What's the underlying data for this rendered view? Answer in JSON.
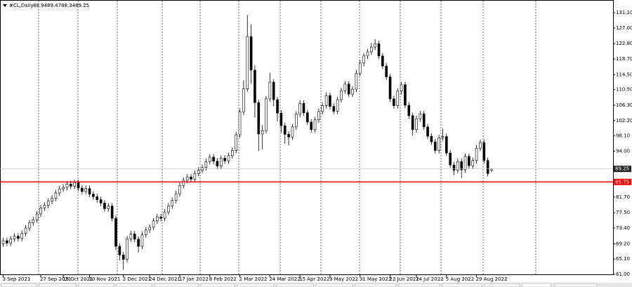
{
  "chart_data": {
    "type": "candlestick",
    "symbol": "#CL,Daily",
    "open": [
      69.2,
      70.0,
      69.4,
      70.5,
      71.2,
      70.6,
      72.0,
      73.4,
      74.8,
      75.6,
      77.2,
      78.8,
      79.5,
      80.6,
      81.4,
      82.8,
      83.9,
      84.3,
      85.2,
      84.6,
      85.6,
      84.1,
      83.2,
      84.0,
      82.5,
      81.8,
      81.0,
      80.1,
      78.6,
      79.3,
      76.0,
      68.5,
      66.2,
      65.0,
      70.5,
      71.8,
      70.4,
      68.5,
      71.6,
      72.9,
      73.6,
      75.3,
      76.4,
      76.0,
      77.7,
      79.3,
      80.8,
      82.6,
      84.8,
      86.2,
      87.1,
      86.5,
      88.0,
      88.9,
      89.6,
      91.2,
      92.4,
      91.3,
      90.0,
      92.1,
      91.4,
      92.8,
      94.2,
      98.4,
      104.5,
      110.7,
      124.7,
      115.7,
      107.0,
      98.6,
      99.5,
      108.0,
      112.5,
      107.8,
      104.2,
      100.8,
      98.5,
      97.8,
      100.5,
      103.9,
      106.8,
      104.3,
      101.8,
      99.8,
      102.4,
      104.6,
      106.2,
      108.9,
      106.0,
      104.7,
      107.8,
      110.2,
      112.0,
      109.3,
      110.6,
      114.9,
      117.6,
      119.5,
      120.6,
      121.9,
      122.8,
      119.5,
      116.8,
      113.9,
      108.0,
      106.2,
      110.1,
      111.8,
      106.3,
      103.5,
      99.8,
      102.7,
      104.0,
      100.5,
      98.0,
      96.5,
      94.2,
      97.6,
      97.9,
      93.5,
      90.3,
      88.9,
      91.2,
      89.0,
      92.6,
      90.1,
      91.5,
      94.8,
      96.3,
      91.5,
      88.94
    ],
    "high": [
      70.8,
      70.8,
      71.3,
      72.0,
      72.0,
      72.8,
      74.2,
      75.6,
      76.4,
      78.0,
      79.6,
      80.3,
      81.4,
      82.2,
      83.6,
      84.7,
      85.1,
      86.0,
      86.0,
      86.4,
      86.4,
      84.9,
      84.8,
      84.8,
      83.3,
      82.6,
      81.8,
      80.9,
      80.1,
      80.1,
      76.8,
      69.3,
      67.0,
      71.3,
      72.6,
      72.6,
      71.2,
      72.4,
      73.7,
      74.4,
      76.1,
      77.2,
      77.2,
      78.5,
      80.1,
      81.6,
      83.4,
      85.6,
      87.0,
      87.9,
      87.9,
      88.8,
      89.7,
      90.4,
      92.0,
      93.2,
      93.2,
      92.1,
      92.9,
      92.9,
      93.6,
      95.0,
      99.2,
      105.3,
      113.0,
      130.5,
      128.0,
      117.0,
      107.8,
      101.0,
      108.8,
      115.0,
      113.3,
      108.6,
      105.0,
      101.6,
      99.3,
      101.3,
      104.7,
      107.6,
      107.6,
      105.1,
      102.6,
      103.2,
      105.4,
      107.0,
      109.7,
      109.7,
      106.8,
      108.6,
      111.0,
      112.8,
      112.8,
      111.4,
      115.7,
      118.4,
      120.3,
      121.4,
      123.0,
      124.0,
      123.6,
      120.3,
      117.6,
      114.7,
      108.8,
      110.9,
      112.6,
      112.6,
      107.1,
      104.3,
      103.5,
      104.8,
      104.8,
      101.3,
      98.8,
      97.3,
      98.4,
      100.0,
      98.7,
      94.3,
      91.1,
      92.0,
      92.0,
      93.4,
      93.4,
      92.3,
      95.6,
      97.1,
      97.1,
      92.3,
      89.47
    ],
    "low": [
      68.4,
      68.6,
      68.6,
      69.7,
      69.8,
      69.8,
      71.2,
      72.6,
      74.0,
      74.8,
      76.4,
      78.0,
      78.7,
      79.8,
      80.6,
      82.0,
      83.1,
      83.5,
      83.8,
      83.8,
      83.3,
      82.4,
      82.4,
      81.7,
      81.0,
      80.2,
      79.3,
      77.8,
      77.8,
      75.2,
      67.5,
      64.8,
      62.2,
      64.2,
      69.7,
      69.6,
      66.8,
      67.7,
      70.8,
      72.1,
      72.8,
      74.5,
      75.2,
      75.2,
      76.9,
      78.5,
      80.0,
      81.8,
      84.0,
      85.4,
      85.7,
      85.7,
      87.2,
      88.1,
      88.8,
      90.4,
      90.5,
      89.2,
      89.2,
      90.6,
      90.6,
      92.0,
      93.4,
      97.6,
      103.7,
      109.9,
      112.0,
      103.0,
      94.0,
      94.5,
      98.7,
      107.2,
      106.0,
      102.0,
      99.0,
      96.0,
      95.5,
      97.0,
      99.7,
      103.1,
      103.5,
      101.0,
      99.0,
      99.0,
      101.6,
      103.8,
      105.4,
      105.2,
      103.9,
      103.9,
      107.0,
      109.4,
      108.5,
      108.5,
      109.8,
      114.1,
      116.8,
      118.7,
      119.8,
      121.1,
      118.7,
      116.0,
      113.1,
      107.2,
      105.4,
      105.4,
      109.3,
      105.5,
      102.7,
      98.2,
      99.0,
      101.9,
      99.7,
      97.2,
      95.7,
      93.4,
      93.4,
      96.8,
      92.7,
      89.5,
      87.6,
      88.1,
      86.8,
      88.2,
      89.3,
      89.3,
      90.7,
      94.0,
      90.7,
      87.2,
      88.34
    ],
    "close": [
      70.0,
      69.4,
      70.5,
      71.2,
      70.6,
      72.0,
      73.4,
      74.8,
      75.6,
      77.2,
      78.8,
      79.5,
      80.6,
      81.4,
      82.8,
      83.9,
      84.3,
      85.2,
      84.6,
      85.6,
      84.1,
      83.2,
      84.0,
      82.5,
      81.8,
      81.0,
      80.1,
      78.6,
      79.3,
      76.0,
      68.5,
      66.2,
      65.0,
      70.5,
      71.8,
      70.4,
      68.5,
      71.6,
      72.9,
      73.6,
      75.3,
      76.4,
      76.0,
      77.7,
      79.3,
      80.8,
      82.6,
      84.8,
      86.2,
      87.1,
      86.5,
      88.0,
      88.9,
      89.6,
      91.2,
      92.4,
      91.3,
      90.0,
      92.1,
      91.4,
      92.8,
      94.2,
      98.4,
      104.5,
      110.7,
      124.7,
      115.7,
      107.0,
      98.6,
      99.5,
      108.0,
      112.5,
      107.8,
      104.2,
      100.8,
      98.5,
      97.8,
      100.5,
      103.9,
      106.8,
      104.3,
      101.8,
      99.8,
      102.4,
      104.6,
      106.2,
      108.9,
      106.0,
      104.7,
      107.8,
      110.2,
      112.0,
      109.3,
      110.6,
      114.9,
      117.6,
      119.5,
      120.6,
      121.9,
      122.8,
      119.5,
      116.8,
      113.9,
      108.0,
      106.2,
      110.1,
      111.8,
      106.3,
      103.5,
      99.8,
      102.7,
      104.0,
      100.5,
      98.0,
      96.5,
      94.2,
      97.6,
      97.9,
      93.5,
      90.3,
      88.9,
      91.2,
      89.0,
      92.6,
      90.1,
      91.5,
      94.8,
      96.3,
      91.5,
      88.0,
      89.25
    ],
    "level": 85.75,
    "level_color": "#ff0000",
    "ylim": [
      60.8,
      134.5
    ],
    "yticks": [
      {
        "value": 131.1,
        "label": "131.10"
      },
      {
        "value": 127,
        "label": "127.00"
      },
      {
        "value": 122.8,
        "label": "122.80"
      },
      {
        "value": 118.7,
        "label": "118.70"
      },
      {
        "value": 114.5,
        "label": "114.50"
      },
      {
        "value": 110.5,
        "label": "110.50"
      },
      {
        "value": 106.3,
        "label": "106.30"
      },
      {
        "value": 102.2,
        "label": "102.20"
      },
      {
        "value": 98.1,
        "label": "98.10"
      },
      {
        "value": 94,
        "label": "94.00"
      },
      {
        "value": 81.7,
        "label": "81.70"
      },
      {
        "value": 77.5,
        "label": "77.50"
      },
      {
        "value": 73.4,
        "label": "73.40"
      },
      {
        "value": 69.2,
        "label": "69.20"
      },
      {
        "value": 65.1,
        "label": "65.10"
      },
      {
        "value": 61,
        "label": "61.00"
      }
    ],
    "xticks": [
      {
        "value": 0,
        "label": "3 Sep 2021"
      },
      {
        "value": 10,
        "label": "27 Sep 2021"
      },
      {
        "value": 16,
        "label": "19 Oct 2021"
      },
      {
        "value": 23,
        "label": "10 Nov 2021"
      },
      {
        "value": 32,
        "label": "2 Dec 2021"
      },
      {
        "value": 39,
        "label": "24 Dec 2021"
      },
      {
        "value": 47,
        "label": "17 Jan 2022"
      },
      {
        "value": 55,
        "label": "8 Feb 2022"
      },
      {
        "value": 63,
        "label": "2 Mar 2022"
      },
      {
        "value": 71,
        "label": "24 Mar 2022"
      },
      {
        "value": 79,
        "label": "15 Apr 2022"
      },
      {
        "value": 87,
        "label": "9 May 2022"
      },
      {
        "value": 95,
        "label": "31 May 2022"
      },
      {
        "value": 103,
        "label": "22 Jun 2022"
      },
      {
        "value": 110,
        "label": "14 Jul 2022"
      },
      {
        "value": 118,
        "label": "5 Aug 2022"
      },
      {
        "value": 126,
        "label": "29 Aug 2022"
      }
    ]
  }
}
